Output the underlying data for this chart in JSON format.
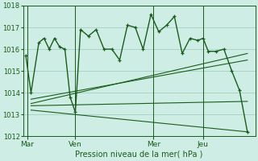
{
  "title": "Pression niveau de la mer( hPa )",
  "bg_color": "#ceeee5",
  "grid_color": "#aad4c8",
  "line_color": "#1a5c1a",
  "ylim": [
    1012,
    1018
  ],
  "yticks": [
    1012,
    1013,
    1014,
    1015,
    1016,
    1017,
    1018
  ],
  "xtick_labels": [
    "Mar",
    "Ven",
    "Mer",
    "Jeu"
  ],
  "xtick_pos": [
    0.5,
    19,
    49,
    68
  ],
  "vline_pos": [
    0.5,
    19,
    49,
    68
  ],
  "series1_x": [
    0,
    2,
    5,
    7,
    9,
    11,
    13,
    15,
    17,
    19,
    21,
    24,
    27,
    30,
    33,
    36,
    39,
    42,
    45,
    48,
    51,
    54,
    57,
    60,
    63,
    66,
    68,
    70,
    73,
    76,
    79,
    82,
    85
  ],
  "series1_y": [
    1015.7,
    1014.0,
    1016.3,
    1016.5,
    1016.0,
    1016.5,
    1016.1,
    1016.0,
    1013.8,
    1013.1,
    1016.9,
    1016.6,
    1016.9,
    1016.0,
    1016.0,
    1015.5,
    1017.1,
    1017.0,
    1016.0,
    1017.6,
    1016.8,
    1017.1,
    1017.5,
    1015.8,
    1016.5,
    1016.4,
    1016.5,
    1015.9,
    1015.9,
    1016.0,
    1015.0,
    1014.1,
    1012.2
  ],
  "fan_lines": [
    {
      "x": [
        2,
        85
      ],
      "y": [
        1013.7,
        1015.5
      ]
    },
    {
      "x": [
        2,
        85
      ],
      "y": [
        1013.5,
        1015.8
      ]
    },
    {
      "x": [
        2,
        85
      ],
      "y": [
        1013.4,
        1013.6
      ]
    },
    {
      "x": [
        2,
        85
      ],
      "y": [
        1013.2,
        1012.2
      ]
    }
  ]
}
